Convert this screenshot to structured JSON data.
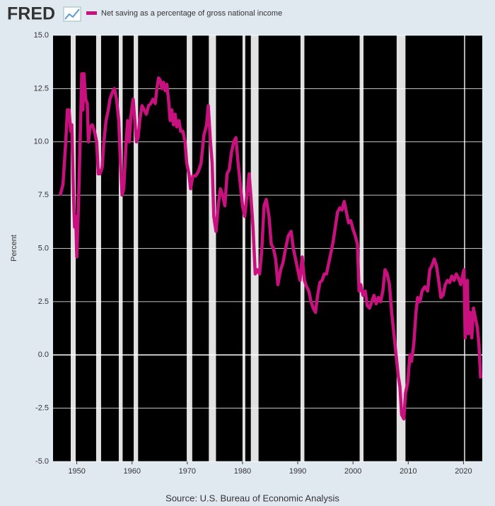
{
  "logo": "FRED",
  "chart_data": {
    "type": "line",
    "series": [
      {
        "name": "Net saving as a percentage of gross national income",
        "color": "#c8107e",
        "x": [
          1947.0,
          1947.5,
          1948.0,
          1948.3,
          1948.6,
          1948.9,
          1949.1,
          1949.4,
          1949.6,
          1949.8,
          1950.0,
          1950.3,
          1950.6,
          1950.9,
          1951.1,
          1951.3,
          1951.6,
          1951.9,
          1952.1,
          1952.4,
          1952.8,
          1953.2,
          1953.6,
          1953.9,
          1954.2,
          1954.6,
          1954.9,
          1955.3,
          1955.7,
          1956.0,
          1956.4,
          1956.8,
          1957.2,
          1957.6,
          1957.9,
          1958.2,
          1958.5,
          1958.9,
          1959.2,
          1959.5,
          1959.8,
          1960.2,
          1960.5,
          1960.8,
          1961.1,
          1961.4,
          1961.8,
          1962.2,
          1962.6,
          1963.0,
          1963.4,
          1963.8,
          1964.2,
          1964.5,
          1964.8,
          1965.1,
          1965.4,
          1965.7,
          1966.0,
          1966.3,
          1966.6,
          1966.9,
          1967.2,
          1967.5,
          1967.8,
          1968.1,
          1968.5,
          1968.8,
          1969.2,
          1969.6,
          1969.9,
          1970.3,
          1970.6,
          1971.0,
          1971.5,
          1972.0,
          1972.5,
          1973.0,
          1973.5,
          1973.8,
          1974.2,
          1974.5,
          1974.8,
          1975.2,
          1975.6,
          1976.0,
          1976.4,
          1976.8,
          1977.2,
          1977.6,
          1978.0,
          1978.4,
          1978.8,
          1979.2,
          1979.6,
          1980.0,
          1980.4,
          1980.8,
          1981.2,
          1981.5,
          1981.9,
          1982.3,
          1982.7,
          1983.1,
          1983.5,
          1983.9,
          1984.3,
          1984.8,
          1985.2,
          1985.6,
          1986.0,
          1986.4,
          1986.9,
          1987.3,
          1987.8,
          1988.3,
          1988.8,
          1989.2,
          1989.6,
          1990.0,
          1990.4,
          1990.8,
          1991.2,
          1991.6,
          1992.0,
          1992.4,
          1992.8,
          1993.2,
          1993.6,
          1994.0,
          1994.4,
          1994.8,
          1995.2,
          1995.6,
          1996.0,
          1996.4,
          1996.8,
          1997.2,
          1997.6,
          1998.0,
          1998.4,
          1998.8,
          1999.2,
          1999.6,
          2000.0,
          2000.4,
          2000.8,
          2001.1,
          2001.4,
          2001.8,
          2002.2,
          2002.6,
          2003.0,
          2003.4,
          2003.8,
          2004.2,
          2004.6,
          2005.0,
          2005.4,
          2005.8,
          2006.2,
          2006.6,
          2007.0,
          2007.4,
          2007.8,
          2008.2,
          2008.5,
          2008.8,
          2009.2,
          2009.5,
          2009.9,
          2010.3,
          2010.6,
          2011.0,
          2011.4,
          2011.7,
          2012.1,
          2012.5,
          2013.0,
          2013.5,
          2013.9,
          2014.3,
          2014.7,
          2015.1,
          2015.5,
          2015.9,
          2016.3,
          2016.7,
          2017.1,
          2017.5,
          2017.9,
          2018.3,
          2018.7,
          2019.1,
          2019.5,
          2019.9,
          2020.1,
          2020.3,
          2020.5,
          2020.7,
          2020.9,
          2021.2,
          2021.5,
          2021.8,
          2022.1,
          2022.5,
          2022.8,
          2023.1
        ],
        "values": [
          7.5,
          8.0,
          10.0,
          11.5,
          11.5,
          10.5,
          10.8,
          7.5,
          6.0,
          6.5,
          4.6,
          7.0,
          10.0,
          13.2,
          11.5,
          13.2,
          12.0,
          11.8,
          10.0,
          10.7,
          10.8,
          10.5,
          10.0,
          8.5,
          8.5,
          8.8,
          10.0,
          11.0,
          11.5,
          12.0,
          12.3,
          12.5,
          12.0,
          11.0,
          9.0,
          7.5,
          7.8,
          9.8,
          11.0,
          10.0,
          11.2,
          12.0,
          11.0,
          10.0,
          10.2,
          11.0,
          11.7,
          11.5,
          11.3,
          11.7,
          11.8,
          12.0,
          11.8,
          12.5,
          13.0,
          12.9,
          12.5,
          12.8,
          12.4,
          12.7,
          12.0,
          11.0,
          11.5,
          10.8,
          11.3,
          10.7,
          11.0,
          10.5,
          10.5,
          10.0,
          9.0,
          8.5,
          7.8,
          8.4,
          8.4,
          8.6,
          9.0,
          10.3,
          10.8,
          11.7,
          10.0,
          9.0,
          6.5,
          5.8,
          7.0,
          7.8,
          7.5,
          7.0,
          8.5,
          8.7,
          9.5,
          10.0,
          10.2,
          9.0,
          8.0,
          7.0,
          6.5,
          7.5,
          8.5,
          7.5,
          6.0,
          3.8,
          4.0,
          3.8,
          5.0,
          7.0,
          7.3,
          6.5,
          5.2,
          5.0,
          4.5,
          3.3,
          4.0,
          4.3,
          5.0,
          5.6,
          5.8,
          5.0,
          4.5,
          4.0,
          3.5,
          4.6,
          3.5,
          3.2,
          3.0,
          2.5,
          2.2,
          2.0,
          2.8,
          3.4,
          3.5,
          3.8,
          3.8,
          4.3,
          4.8,
          5.3,
          6.0,
          6.7,
          6.9,
          6.8,
          7.2,
          6.7,
          6.2,
          6.3,
          5.9,
          5.6,
          5.2,
          3.0,
          3.3,
          2.8,
          3.0,
          2.3,
          2.2,
          2.5,
          2.8,
          2.4,
          2.7,
          2.5,
          3.0,
          4.0,
          3.8,
          3.3,
          2.0,
          1.0,
          0.0,
          -1.0,
          -1.5,
          -2.8,
          -3.0,
          -1.8,
          -1.3,
          0.0,
          -0.3,
          0.5,
          2.0,
          2.7,
          2.5,
          3.0,
          3.2,
          3.0,
          4.0,
          4.2,
          4.5,
          4.2,
          3.5,
          2.7,
          2.8,
          3.3,
          3.5,
          3.4,
          3.7,
          3.5,
          3.8,
          3.6,
          3.3,
          3.8,
          4.0,
          0.8,
          2.5,
          3.5,
          1.0,
          2.0,
          0.8,
          2.2,
          1.8,
          1.3,
          0.5,
          -1.1
        ]
      }
    ],
    "recessions": [
      [
        1948.9,
        1949.8
      ],
      [
        1953.5,
        1954.4
      ],
      [
        1957.6,
        1958.3
      ],
      [
        1960.3,
        1961.1
      ],
      [
        1969.9,
        1970.9
      ],
      [
        1973.9,
        1975.2
      ],
      [
        1980.0,
        1980.5
      ],
      [
        1981.5,
        1982.9
      ],
      [
        1990.5,
        1991.2
      ],
      [
        2001.2,
        2001.9
      ],
      [
        2007.9,
        2009.5
      ],
      [
        2020.1,
        2020.3
      ]
    ],
    "xlim": [
      1945.7,
      2023.4
    ],
    "xticks": [
      1950,
      1960,
      1970,
      1980,
      1990,
      2000,
      2010,
      2020
    ],
    "ylim": [
      -5,
      15
    ],
    "yticks": [
      {
        "value": -5,
        "label": "-5.0"
      },
      {
        "value": -2.5,
        "label": "-2.5"
      },
      {
        "value": 0,
        "label": "0.0"
      },
      {
        "value": 2.5,
        "label": "2.5"
      },
      {
        "value": 5,
        "label": "5.0"
      },
      {
        "value": 7.5,
        "label": "7.5"
      },
      {
        "value": 10,
        "label": "10.0"
      },
      {
        "value": 12.5,
        "label": "12.5"
      },
      {
        "value": 15,
        "label": "15.0"
      }
    ],
    "ylabel": "Percent",
    "source": "Source: U.S. Bureau of Economic Analysis",
    "grid": true
  }
}
